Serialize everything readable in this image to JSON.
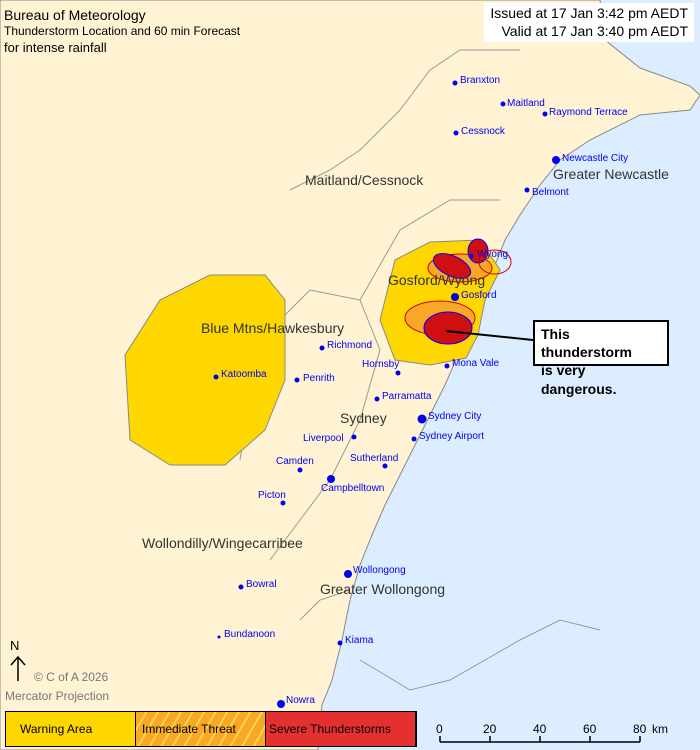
{
  "header": {
    "agency": "Bureau of Meteorology",
    "product": "Thunderstorm Location and 60 min Forecast",
    "hazard": "for intense rainfall"
  },
  "issue": {
    "issued": "Issued at 17 Jan 3:42 pm AEDT",
    "valid": "Valid at 17 Jan 3:40 pm AEDT"
  },
  "callout": {
    "line1": "This thunderstorm",
    "line2": "is very dangerous."
  },
  "regions": [
    "Maitland/Cessnock",
    "Greater Newcastle",
    "Gosford/Wyong",
    "Blue Mtns/Hawkesbury",
    "Sydney",
    "Wollondilly/Wingecarribee",
    "Greater Wollongong"
  ],
  "cities": [
    "Branxton",
    "Maitland",
    "Raymond Terrace",
    "Cessnock",
    "Newcastle City",
    "Belmont",
    "Wyong",
    "Gosford",
    "Richmond",
    "Katoomba",
    "Penrith",
    "Hornsby",
    "Mona Vale",
    "Parramatta",
    "Sydney City",
    "Liverpool",
    "Sydney Airport",
    "Camden",
    "Sutherland",
    "Campbelltown",
    "Picton",
    "Wollongong",
    "Bowral",
    "Bundanoon",
    "Kiama",
    "Nowra"
  ],
  "north_label": "N",
  "copyright": "© C of A 2026",
  "projection": "Mercator Projection",
  "legend": [
    {
      "label": "Warning Area",
      "color": "#ffd700"
    },
    {
      "label": "Immediate Threat",
      "color": "#f9a825"
    },
    {
      "label": "Severe Thunderstorms",
      "color": "#e53030"
    }
  ],
  "scale": {
    "ticks": [
      "0",
      "20",
      "40",
      "60",
      "80"
    ],
    "unit": "km"
  },
  "colors": {
    "land": "#fff3d4",
    "sea": "#dcedff",
    "warning": "#ffd700",
    "severe": "#d01010",
    "city": "#0000ee"
  }
}
